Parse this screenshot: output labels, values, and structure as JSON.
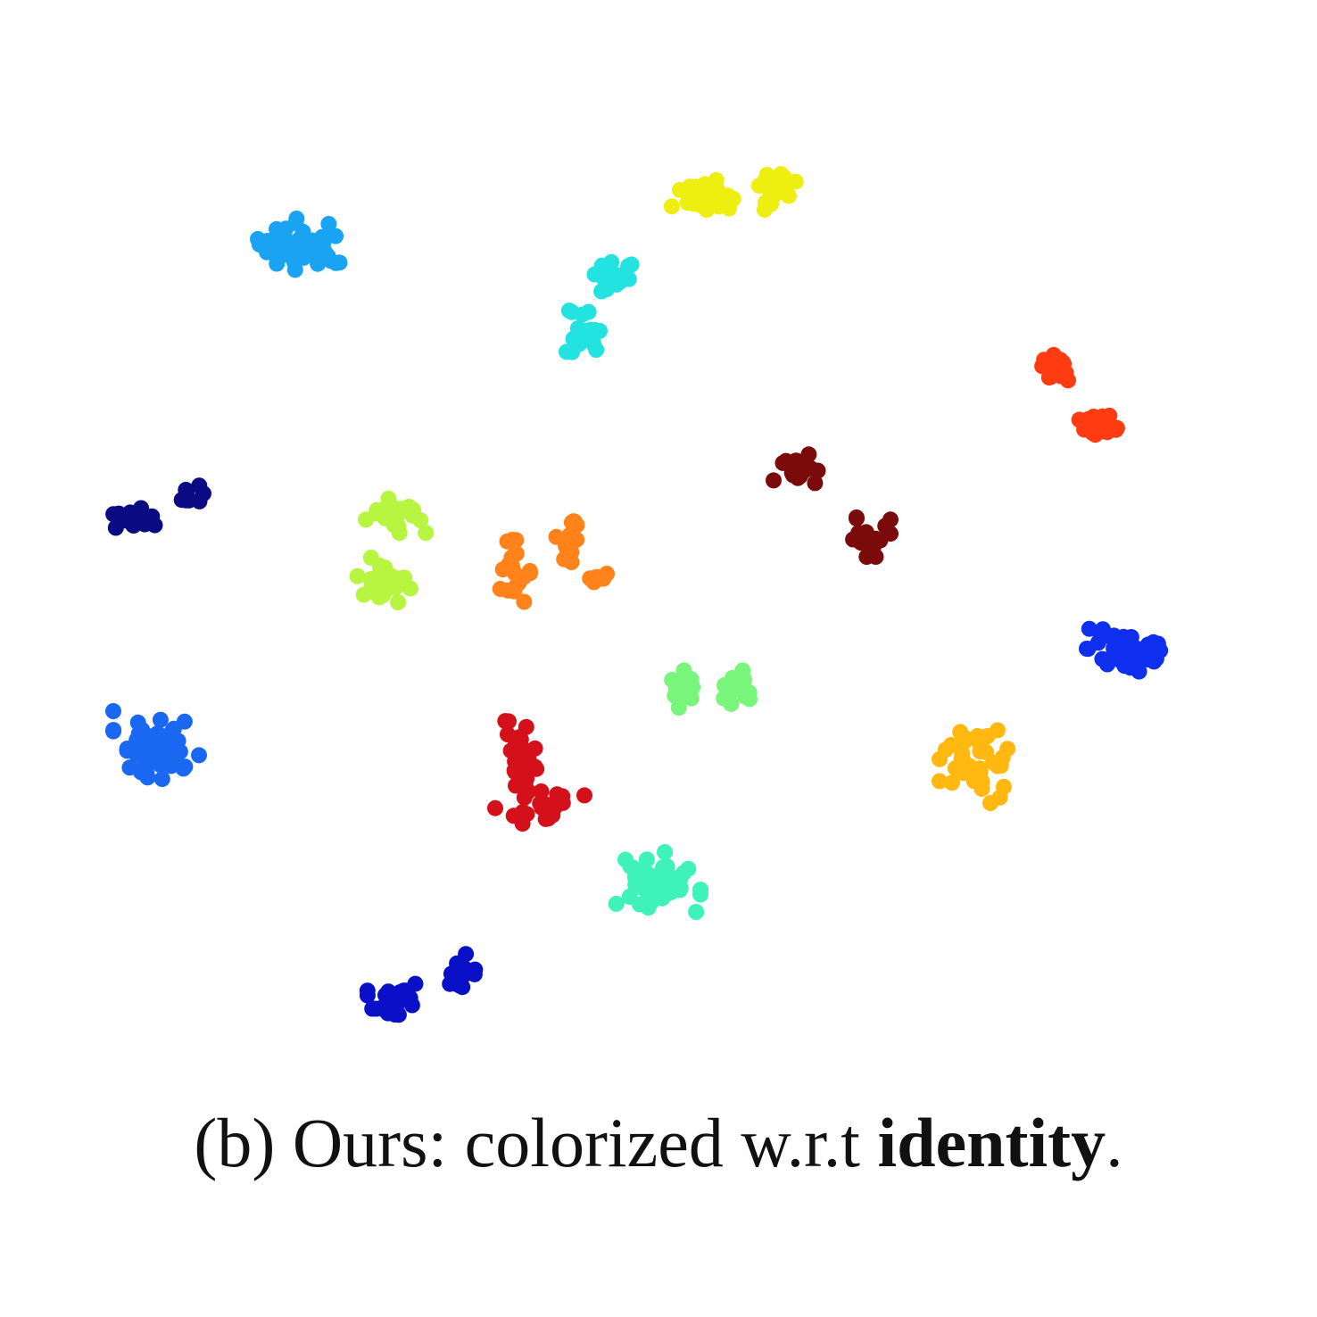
{
  "caption": {
    "prefix": "(b) Ours: colorized w.r.t ",
    "bold": "identity",
    "suffix": "."
  },
  "chart_data": {
    "type": "scatter",
    "title": "",
    "xlabel": "",
    "ylabel": "",
    "grid": false,
    "axes_visible": false,
    "legend": "none",
    "xlim": [
      0,
      1476
    ],
    "ylim": [
      0,
      1230
    ],
    "y_direction": "down",
    "marker_radius": 9,
    "clusters": [
      {
        "color": "#1aa3f2",
        "blobs": [
          [
            340,
            275,
            55,
            30,
            45
          ]
        ]
      },
      {
        "color": "#eeee10",
        "blobs": [
          [
            790,
            220,
            40,
            20,
            25
          ],
          [
            865,
            210,
            28,
            25,
            20
          ]
        ]
      },
      {
        "color": "#22e3e0",
        "blobs": [
          [
            690,
            305,
            30,
            22,
            15
          ],
          [
            655,
            375,
            20,
            40,
            20
          ]
        ]
      },
      {
        "color": "#ff3b12",
        "blobs": [
          [
            1180,
            413,
            25,
            20,
            18
          ],
          [
            1237,
            478,
            28,
            20,
            20
          ]
        ]
      },
      {
        "color": "#7b0a0a",
        "blobs": [
          [
            895,
            528,
            28,
            20,
            20
          ],
          [
            972,
            602,
            26,
            22,
            20
          ]
        ]
      },
      {
        "color": "#0a0a82",
        "blobs": [
          [
            150,
            582,
            25,
            18,
            18
          ],
          [
            210,
            555,
            18,
            15,
            10
          ]
        ]
      },
      {
        "color": "#b8f540",
        "blobs": [
          [
            445,
            580,
            35,
            22,
            22
          ],
          [
            432,
            650,
            35,
            25,
            22
          ]
        ]
      },
      {
        "color": "#ff821a",
        "blobs": [
          [
            578,
            640,
            22,
            35,
            20
          ],
          [
            638,
            605,
            20,
            25,
            15
          ],
          [
            660,
            648,
            20,
            5,
            6
          ]
        ]
      },
      {
        "color": "#0f2fee",
        "blobs": [
          [
            1270,
            728,
            55,
            28,
            48
          ]
        ]
      },
      {
        "color": "#78f57a",
        "blobs": [
          [
            765,
            768,
            22,
            25,
            15
          ],
          [
            822,
            768,
            25,
            22,
            18
          ]
        ]
      },
      {
        "color": "#1a68f2",
        "blobs": [
          [
            175,
            835,
            48,
            38,
            55
          ]
        ]
      },
      {
        "color": "#ffb810",
        "blobs": [
          [
            1098,
            855,
            45,
            45,
            40
          ]
        ]
      },
      {
        "color": "#d4101a",
        "blobs": [
          [
            585,
            850,
            25,
            45,
            25
          ],
          [
            605,
            905,
            50,
            18,
            20
          ]
        ]
      },
      {
        "color": "#3ef2b8",
        "blobs": [
          [
            730,
            990,
            55,
            35,
            45
          ]
        ]
      },
      {
        "color": "#0a10c8",
        "blobs": [
          [
            440,
            1115,
            30,
            30,
            22
          ],
          [
            515,
            1092,
            22,
            28,
            20
          ]
        ]
      }
    ]
  }
}
